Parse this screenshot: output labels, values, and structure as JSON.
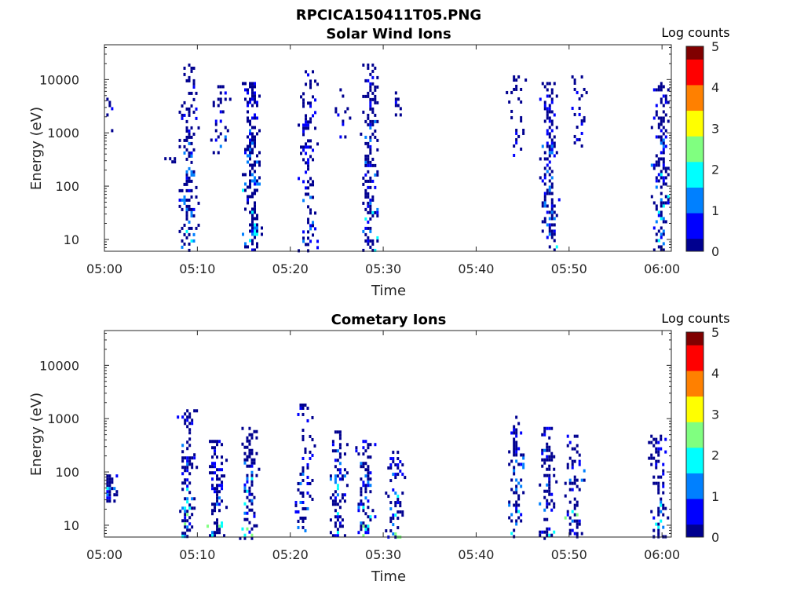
{
  "figure_title": "RPCICA150411T05.PNG",
  "colormap": [
    "#00008f",
    "#0000ff",
    "#0080ff",
    "#00ffff",
    "#80ff80",
    "#ffff00",
    "#ff8000",
    "#ff0000",
    "#800000"
  ],
  "chart_data": [
    {
      "type": "heatmap",
      "title": "Solar Wind Ions",
      "xlabel": "Time",
      "ylabel": "Energy (eV)",
      "x_ticks": [
        "05:00",
        "05:10",
        "05:20",
        "05:30",
        "05:40",
        "05:50",
        "06:00"
      ],
      "xlim_minutes": [
        0,
        61
      ],
      "y_scale": "log",
      "ylim": [
        6,
        45000
      ],
      "y_ticks": [
        10,
        100,
        1000,
        10000
      ],
      "y_tick_labels": [
        "10",
        "100",
        "1000",
        "10000"
      ],
      "colorbar": {
        "label": "Log counts",
        "range": [
          0,
          5
        ],
        "ticks": [
          "0",
          "1",
          "2",
          "3",
          "4",
          "5"
        ]
      },
      "grid": false,
      "clusters": [
        {
          "t": 0.2,
          "emin": 1000,
          "emax": 9000,
          "density": 0.15,
          "color_max": 1.0
        },
        {
          "t": 7.2,
          "emin": 300,
          "emax": 350,
          "density": 0.4,
          "color_max": 1.0
        },
        {
          "t": 9.0,
          "emin": 6,
          "emax": 20000,
          "density": 0.45,
          "color_max": 2.3
        },
        {
          "t": 12.4,
          "emin": 400,
          "emax": 9000,
          "density": 0.3,
          "color_max": 1.5
        },
        {
          "t": 15.8,
          "emin": 6,
          "emax": 9000,
          "density": 0.55,
          "color_max": 2.2
        },
        {
          "t": 21.8,
          "emin": 6,
          "emax": 15000,
          "density": 0.4,
          "color_max": 1.5
        },
        {
          "t": 25.8,
          "emin": 800,
          "emax": 9000,
          "density": 0.15,
          "color_max": 1.0
        },
        {
          "t": 28.5,
          "emin": 6,
          "emax": 20000,
          "density": 0.5,
          "color_max": 2.0
        },
        {
          "t": 31.5,
          "emin": 1500,
          "emax": 6000,
          "density": 0.2,
          "color_max": 1.0
        },
        {
          "t": 44.2,
          "emin": 400,
          "emax": 12000,
          "density": 0.15,
          "color_max": 1.0
        },
        {
          "t": 47.8,
          "emin": 6,
          "emax": 9000,
          "density": 0.5,
          "color_max": 2.0
        },
        {
          "t": 51.0,
          "emin": 600,
          "emax": 12000,
          "density": 0.25,
          "color_max": 1.0
        },
        {
          "t": 59.8,
          "emin": 6,
          "emax": 9000,
          "density": 0.5,
          "color_max": 2.4
        }
      ]
    },
    {
      "type": "heatmap",
      "title": "Cometary Ions",
      "xlabel": "Time",
      "ylabel": "Energy (eV)",
      "x_ticks": [
        "05:00",
        "05:10",
        "05:20",
        "05:30",
        "05:40",
        "05:50",
        "06:00"
      ],
      "xlim_minutes": [
        0,
        61
      ],
      "y_scale": "log",
      "ylim": [
        6,
        45000
      ],
      "y_ticks": [
        10,
        100,
        1000,
        10000
      ],
      "y_tick_labels": [
        "10",
        "100",
        "1000",
        "10000"
      ],
      "colorbar": {
        "label": "Log counts",
        "range": [
          0,
          5
        ],
        "ticks": [
          "0",
          "1",
          "2",
          "3",
          "4",
          "5"
        ]
      },
      "grid": false,
      "clusters": [
        {
          "t": 0.2,
          "emin": 30,
          "emax": 90,
          "density": 0.9,
          "color_max": 2.8
        },
        {
          "t": 8.8,
          "emin": 6,
          "emax": 1500,
          "density": 0.45,
          "color_max": 2.6
        },
        {
          "t": 12.0,
          "emin": 6,
          "emax": 400,
          "density": 0.45,
          "color_max": 2.6
        },
        {
          "t": 15.5,
          "emin": 6,
          "emax": 700,
          "density": 0.5,
          "color_max": 2.7
        },
        {
          "t": 21.5,
          "emin": 6,
          "emax": 2200,
          "density": 0.3,
          "color_max": 1.5
        },
        {
          "t": 25.0,
          "emin": 6,
          "emax": 600,
          "density": 0.45,
          "color_max": 2.6
        },
        {
          "t": 28.0,
          "emin": 6,
          "emax": 400,
          "density": 0.45,
          "color_max": 2.6
        },
        {
          "t": 31.2,
          "emin": 6,
          "emax": 250,
          "density": 0.35,
          "color_max": 2.7
        },
        {
          "t": 44.2,
          "emin": 6,
          "emax": 1300,
          "density": 0.4,
          "color_max": 2.5
        },
        {
          "t": 47.5,
          "emin": 6,
          "emax": 700,
          "density": 0.45,
          "color_max": 2.5
        },
        {
          "t": 50.5,
          "emin": 6,
          "emax": 500,
          "density": 0.45,
          "color_max": 2.8
        },
        {
          "t": 59.5,
          "emin": 6,
          "emax": 500,
          "density": 0.45,
          "color_max": 2.5
        }
      ]
    }
  ]
}
